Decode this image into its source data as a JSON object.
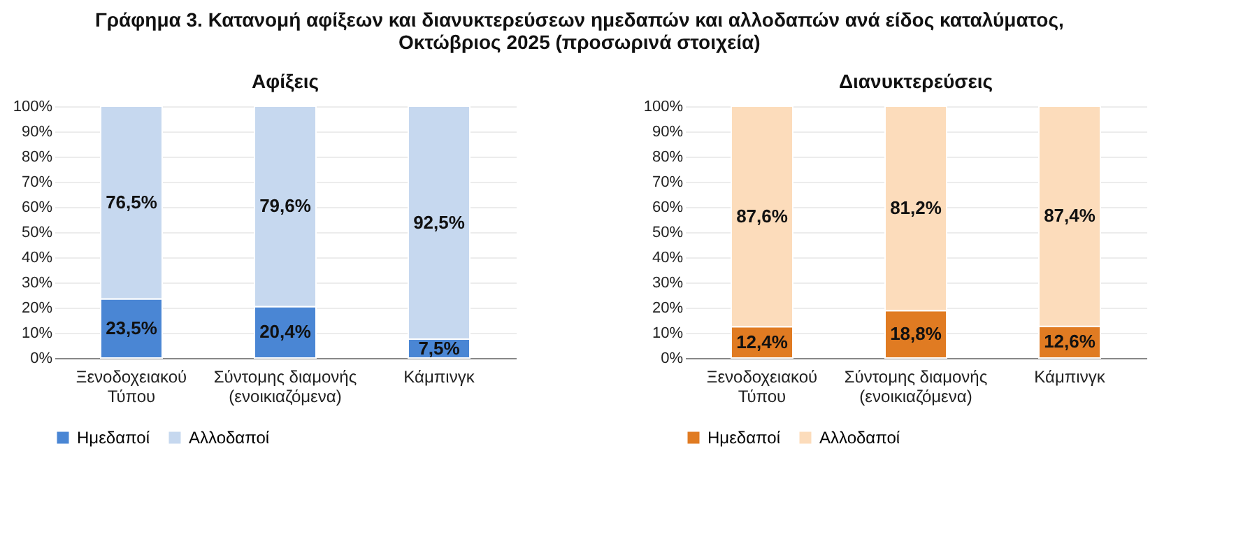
{
  "chart_data": [
    {
      "type": "bar",
      "title": "Αφίξεις",
      "annotations": [
        "Γράφημα 3. Κατανομή αφίξεων και διανυκτερεύσεων ημεδαπών και αλλοδαπών ανά είδος καταλύματος, Οκτώβριος 2025 (προσωρινά στοιχεία)"
      ],
      "categories": [
        "Ξενοδοχειακού Τύπου",
        "Σύντομης διαμονής (ενοικιαζόμενα)",
        "Κάμπινγκ"
      ],
      "stacked": true,
      "ylim": [
        0,
        100
      ],
      "yticks": [
        {
          "value": 0,
          "label": "0%"
        },
        {
          "value": 10,
          "label": "10%"
        },
        {
          "value": 20,
          "label": "20%"
        },
        {
          "value": 30,
          "label": "30%"
        },
        {
          "value": 40,
          "label": "40%"
        },
        {
          "value": 50,
          "label": "50%"
        },
        {
          "value": 60,
          "label": "60%"
        },
        {
          "value": 70,
          "label": "70%"
        },
        {
          "value": 80,
          "label": "80%"
        },
        {
          "value": 90,
          "label": "90%"
        },
        {
          "value": 100,
          "label": "100%"
        }
      ],
      "grid": "y",
      "legend": "bottom",
      "series": [
        {
          "name": "Ημεδαποί",
          "color": "#4a86d4",
          "values": [
            23.5,
            20.4,
            7.5
          ],
          "value_labels": [
            "23,5%",
            "20,4%",
            "7,5%"
          ]
        },
        {
          "name": "Αλλοδαποί",
          "color": "#c6d8ef",
          "values": [
            76.5,
            79.6,
            92.5
          ],
          "value_labels": [
            "76,5%",
            "79,6%",
            "92,5%"
          ]
        }
      ]
    },
    {
      "type": "bar",
      "title": "Διανυκτερεύσεις",
      "categories": [
        "Ξενοδοχειακού Τύπου",
        "Σύντομης διαμονής (ενοικιαζόμενα)",
        "Κάμπινγκ"
      ],
      "stacked": true,
      "ylim": [
        0,
        100
      ],
      "yticks": [
        {
          "value": 0,
          "label": "0%"
        },
        {
          "value": 10,
          "label": "10%"
        },
        {
          "value": 20,
          "label": "20%"
        },
        {
          "value": 30,
          "label": "30%"
        },
        {
          "value": 40,
          "label": "40%"
        },
        {
          "value": 50,
          "label": "50%"
        },
        {
          "value": 60,
          "label": "60%"
        },
        {
          "value": 70,
          "label": "70%"
        },
        {
          "value": 80,
          "label": "80%"
        },
        {
          "value": 90,
          "label": "90%"
        },
        {
          "value": 100,
          "label": "100%"
        }
      ],
      "grid": "y",
      "legend": "bottom",
      "series": [
        {
          "name": "Ημεδαποί",
          "color": "#e07b22",
          "values": [
            12.4,
            18.8,
            12.6
          ],
          "value_labels": [
            "12,4%",
            "18,8%",
            "12,6%"
          ]
        },
        {
          "name": "Αλλοδαποί",
          "color": "#fcdcbb",
          "values": [
            87.6,
            81.2,
            87.4
          ],
          "value_labels": [
            "87,6%",
            "81,2%",
            "87,4%"
          ]
        }
      ]
    }
  ]
}
